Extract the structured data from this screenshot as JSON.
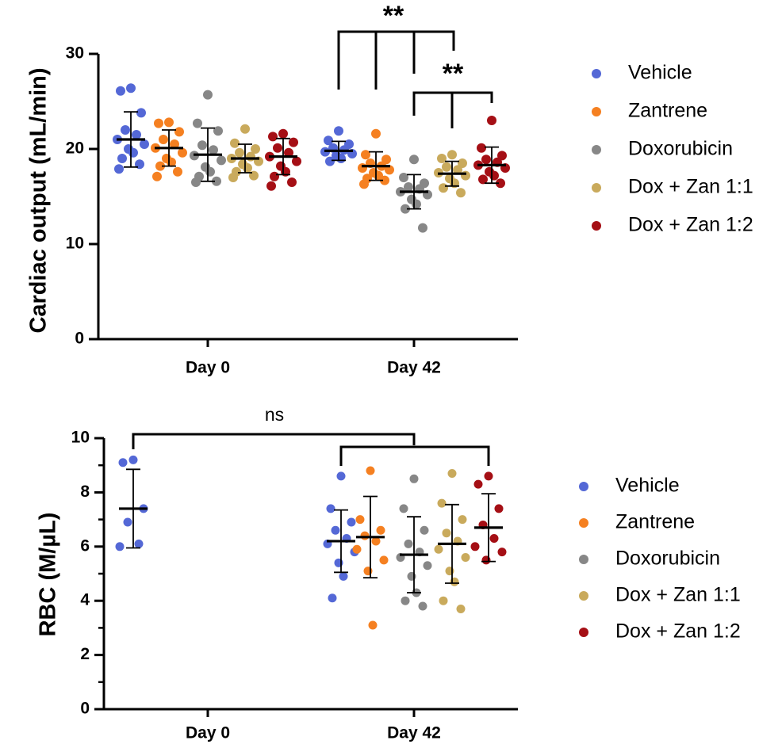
{
  "colors": {
    "Vehicle": "#5468d6",
    "Zantrene": "#f58021",
    "Doxorubicin": "#878787",
    "Dox + Zan 1:1": "#c9aa5c",
    "Dox + Zan 1:2": "#a50f15"
  },
  "chart_data": [
    {
      "type": "scatter",
      "panel": "top",
      "ylabel": "Cardiac output (mL/min)",
      "categories": [
        "Day 0",
        "Day 42"
      ],
      "ylim": [
        0,
        30
      ],
      "yticks": [
        0,
        10,
        20,
        30
      ],
      "legend": {
        "position": "right",
        "entries": [
          "Vehicle",
          "Zantrene",
          "Doxorubicin",
          "Dox + Zan 1:1",
          "Dox + Zan 1:2"
        ]
      },
      "series": [
        {
          "name": "Vehicle",
          "groups": [
            {
              "category": "Day 0",
              "mean": 21.0,
              "sd": 2.9,
              "values": [
                26.4,
                26.1,
                23.8,
                22.0,
                21.5,
                21.0,
                20.5,
                20.0,
                19.6,
                19.0,
                18.4,
                17.9
              ]
            },
            {
              "category": "Day 42",
              "mean": 19.8,
              "sd": 1.0,
              "values": [
                21.9,
                20.9,
                20.5,
                20.1,
                19.9,
                19.7,
                19.5,
                19.3,
                19.0,
                18.7
              ]
            }
          ]
        },
        {
          "name": "Zantrene",
          "groups": [
            {
              "category": "Day 0",
              "mean": 20.1,
              "sd": 1.9,
              "values": [
                22.8,
                22.7,
                21.8,
                21.0,
                20.5,
                20.1,
                19.6,
                19.0,
                18.6,
                18.2,
                17.6,
                17.1
              ]
            },
            {
              "category": "Day 42",
              "mean": 18.2,
              "sd": 1.5,
              "values": [
                21.6,
                19.4,
                18.9,
                18.5,
                18.2,
                18.0,
                17.8,
                17.5,
                17.2,
                16.9,
                16.7,
                16.3
              ]
            }
          ]
        },
        {
          "name": "Doxorubicin",
          "groups": [
            {
              "category": "Day 0",
              "mean": 19.4,
              "sd": 2.8,
              "values": [
                25.7,
                22.7,
                21.9,
                20.4,
                19.9,
                19.3,
                18.8,
                18.1,
                17.6,
                17.1,
                16.6,
                16.5
              ]
            },
            {
              "category": "Day 42",
              "mean": 15.5,
              "sd": 1.8,
              "values": [
                18.9,
                17.0,
                16.4,
                16.0,
                15.8,
                15.5,
                15.2,
                14.7,
                14.2,
                13.7,
                11.7
              ]
            }
          ]
        },
        {
          "name": "Dox + Zan 1:1",
          "groups": [
            {
              "category": "Day 0",
              "mean": 19.0,
              "sd": 1.5,
              "values": [
                22.1,
                20.6,
                20.0,
                19.6,
                19.2,
                19.0,
                18.7,
                18.4,
                18.0,
                17.6,
                17.2,
                17.0
              ]
            },
            {
              "category": "Day 42",
              "mean": 17.4,
              "sd": 1.3,
              "values": [
                19.4,
                19.0,
                18.5,
                18.1,
                17.8,
                17.5,
                17.2,
                16.9,
                16.4,
                15.9,
                15.4
              ]
            }
          ]
        },
        {
          "name": "Dox + Zan 1:2",
          "groups": [
            {
              "category": "Day 0",
              "mean": 19.2,
              "sd": 1.9,
              "values": [
                21.6,
                21.3,
                20.7,
                20.1,
                19.6,
                19.2,
                18.7,
                18.2,
                17.6,
                17.1,
                16.5,
                16.1
              ]
            },
            {
              "category": "Day 42",
              "mean": 18.3,
              "sd": 1.9,
              "values": [
                23.0,
                20.1,
                19.3,
                18.9,
                18.6,
                18.3,
                18.0,
                17.6,
                17.2,
                16.8,
                16.4
              ]
            }
          ]
        }
      ],
      "annotations": [
        {
          "text": "**",
          "from": [
            "Vehicle",
            "Zantrene"
          ],
          "to": [
            "Doxorubicin",
            "Dox + Zan 1:1"
          ],
          "category": "Day 42"
        },
        {
          "text": "**",
          "from": [
            "Doxorubicin"
          ],
          "to": [
            "Dox + Zan 1:1",
            "Dox + Zan 1:2"
          ],
          "category": "Day 42"
        }
      ]
    },
    {
      "type": "scatter",
      "panel": "bottom",
      "ylabel": "RBC (M/µL)",
      "categories": [
        "Day 0",
        "Day 42"
      ],
      "ylim": [
        0,
        10
      ],
      "yticks": [
        0,
        2,
        4,
        6,
        8,
        10
      ],
      "legend": {
        "position": "right",
        "entries": [
          "Vehicle",
          "Zantrene",
          "Doxorubicin",
          "Dox + Zan 1:1",
          "Dox + Zan 1:2"
        ]
      },
      "baseline_group": {
        "category": "Day 0",
        "color": "#5468d6",
        "mean": 7.4,
        "sd": 1.45,
        "values": [
          9.2,
          9.1,
          7.4,
          6.9,
          6.1,
          6.0
        ]
      },
      "series": [
        {
          "name": "Vehicle",
          "groups": [
            {
              "category": "Day 42",
              "mean": 6.2,
              "sd": 1.15,
              "values": [
                8.6,
                7.4,
                6.9,
                6.6,
                6.3,
                6.1,
                5.8,
                5.4,
                4.9,
                4.1
              ]
            }
          ]
        },
        {
          "name": "Zantrene",
          "groups": [
            {
              "category": "Day 42",
              "mean": 6.35,
              "sd": 1.5,
              "values": [
                8.8,
                7.0,
                6.6,
                6.4,
                6.2,
                5.9,
                5.5,
                5.1,
                3.1
              ]
            }
          ]
        },
        {
          "name": "Doxorubicin",
          "groups": [
            {
              "category": "Day 42",
              "mean": 5.7,
              "sd": 1.4,
              "values": [
                8.5,
                7.4,
                6.6,
                6.1,
                5.8,
                5.6,
                5.3,
                4.9,
                4.3,
                4.0,
                3.8
              ]
            }
          ]
        },
        {
          "name": "Dox + Zan 1:1",
          "groups": [
            {
              "category": "Day 42",
              "mean": 6.1,
              "sd": 1.45,
              "values": [
                8.7,
                7.6,
                7.0,
                6.5,
                6.2,
                5.9,
                5.6,
                5.1,
                4.7,
                4.0,
                3.7
              ]
            }
          ]
        },
        {
          "name": "Dox + Zan 1:2",
          "groups": [
            {
              "category": "Day 42",
              "mean": 6.7,
              "sd": 1.25,
              "values": [
                8.6,
                8.3,
                7.4,
                6.8,
                6.3,
                6.0,
                5.8,
                5.5
              ]
            }
          ]
        }
      ],
      "annotations": [
        {
          "text": "ns",
          "from": [
            "Day 0"
          ],
          "to": [
            "Day 42"
          ]
        }
      ]
    }
  ]
}
